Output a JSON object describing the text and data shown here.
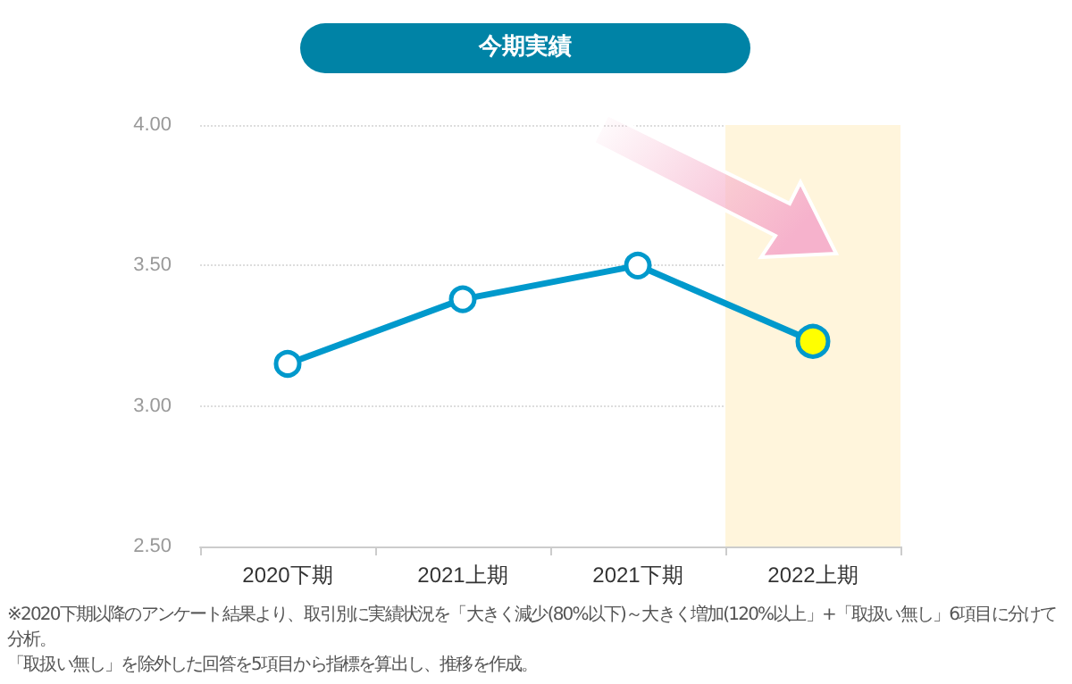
{
  "chart_data": {
    "type": "line",
    "title": "今期実績",
    "categories": [
      "2020下期",
      "2021上期",
      "2021下期",
      "2022上期"
    ],
    "series": [
      {
        "color": "#0099cc",
        "colors": [
          "#ffffff",
          "#ffffff",
          "#ffffff",
          "#ffff00"
        ],
        "values": [
          3.15,
          3.38,
          3.5,
          3.23
        ]
      }
    ],
    "ylim": [
      2.5,
      4
    ],
    "yticks": [
      {
        "value": 2.5,
        "label": "2.50"
      },
      {
        "value": 3,
        "label": "3.00"
      },
      {
        "value": 3.5,
        "label": "3.50"
      },
      {
        "value": 4,
        "label": "4.00"
      }
    ],
    "grid": "y",
    "marker": "circle",
    "line_style": "solid",
    "bands": [
      {
        "axis": "x",
        "from": "2022上期",
        "to": "2022上期",
        "color": "#fff5dc"
      }
    ],
    "annotations": [
      "※2020下期以降のアンケート結果より、取引別に実績状況を「大きく減少(80%以下)～大きく増加(120%以上」+「取扱い無し」6項目に分けて分析。",
      "「取扱い無し」を除外した回答を5項目から指標を算出し、推移を作成。"
    ]
  }
}
